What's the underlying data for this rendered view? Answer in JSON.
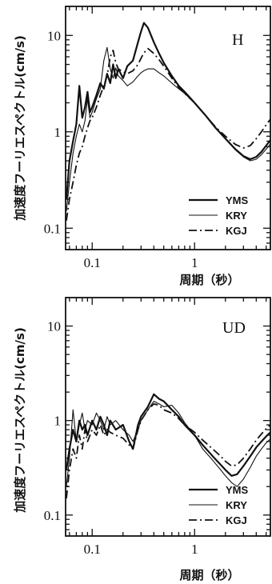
{
  "chart_data": [
    {
      "type": "line",
      "panel_label": "H",
      "xlabel": "周期（秒）",
      "ylabel": "加速度フーリエスペクトル(cm/s)",
      "xscale": "log",
      "yscale": "log",
      "xlim": [
        0.055,
        5.5
      ],
      "ylim": [
        0.06,
        20
      ],
      "xticks": [
        {
          "v": 0.1,
          "label": "0.1"
        },
        {
          "v": 1,
          "label": "1"
        }
      ],
      "yticks": [
        {
          "v": 0.1,
          "label": "0.1"
        },
        {
          "v": 1,
          "label": "1"
        },
        {
          "v": 10,
          "label": "10"
        }
      ],
      "legend_position": "bottom-right",
      "series": [
        {
          "name": "YMS",
          "style": "solid-thick",
          "x": [
            0.056,
            0.06,
            0.065,
            0.07,
            0.075,
            0.08,
            0.085,
            0.09,
            0.095,
            0.1,
            0.11,
            0.12,
            0.13,
            0.14,
            0.15,
            0.16,
            0.17,
            0.18,
            0.2,
            0.22,
            0.25,
            0.28,
            0.3,
            0.32,
            0.35,
            0.4,
            0.45,
            0.5,
            0.6,
            0.7,
            0.8,
            1.0,
            1.3,
            1.6,
            2.0,
            2.5,
            3.0,
            3.5,
            4.0,
            4.5,
            5.0,
            5.5
          ],
          "y": [
            0.2,
            0.5,
            0.8,
            1.2,
            3.0,
            1.4,
            1.8,
            2.6,
            1.6,
            1.8,
            2.4,
            3.2,
            2.8,
            4.0,
            3.2,
            5.0,
            3.6,
            4.5,
            3.6,
            4.8,
            5.5,
            8.5,
            11.0,
            13.5,
            12.0,
            8.5,
            6.5,
            5.2,
            3.8,
            3.0,
            2.6,
            2.0,
            1.45,
            1.1,
            0.85,
            0.66,
            0.56,
            0.52,
            0.55,
            0.62,
            0.72,
            0.82
          ]
        },
        {
          "name": "KRY",
          "style": "solid-thin",
          "x": [
            0.056,
            0.06,
            0.065,
            0.07,
            0.075,
            0.08,
            0.085,
            0.09,
            0.095,
            0.1,
            0.11,
            0.12,
            0.13,
            0.14,
            0.15,
            0.16,
            0.17,
            0.18,
            0.2,
            0.22,
            0.25,
            0.28,
            0.3,
            0.32,
            0.35,
            0.4,
            0.45,
            0.5,
            0.6,
            0.7,
            0.8,
            1.0,
            1.3,
            1.6,
            2.0,
            2.5,
            3.0,
            3.5,
            4.0,
            4.5,
            5.0,
            5.5
          ],
          "y": [
            0.15,
            0.3,
            0.6,
            0.9,
            1.2,
            1.0,
            1.3,
            2.2,
            1.4,
            1.6,
            2.2,
            2.8,
            5.5,
            7.5,
            4.5,
            3.6,
            4.6,
            3.8,
            3.4,
            3.0,
            3.3,
            3.8,
            4.1,
            4.3,
            4.5,
            4.5,
            4.1,
            3.8,
            3.2,
            2.8,
            2.5,
            2.0,
            1.45,
            1.1,
            0.84,
            0.65,
            0.55,
            0.5,
            0.52,
            0.58,
            0.66,
            0.75
          ]
        },
        {
          "name": "KGJ",
          "style": "dash-dot",
          "x": [
            0.056,
            0.06,
            0.065,
            0.07,
            0.075,
            0.08,
            0.085,
            0.09,
            0.095,
            0.1,
            0.11,
            0.12,
            0.13,
            0.14,
            0.15,
            0.16,
            0.17,
            0.18,
            0.2,
            0.22,
            0.25,
            0.28,
            0.3,
            0.32,
            0.35,
            0.4,
            0.45,
            0.5,
            0.6,
            0.7,
            0.8,
            1.0,
            1.3,
            1.6,
            2.0,
            2.5,
            3.0,
            3.5,
            4.0,
            4.5,
            5.0,
            5.5
          ],
          "y": [
            0.12,
            0.2,
            0.3,
            0.45,
            0.6,
            0.7,
            0.9,
            1.1,
            1.3,
            1.4,
            1.8,
            2.4,
            3.0,
            3.8,
            6.0,
            7.0,
            5.2,
            4.5,
            4.2,
            4.0,
            4.3,
            5.0,
            5.8,
            6.6,
            7.3,
            6.5,
            5.6,
            4.8,
            3.6,
            2.9,
            2.5,
            2.0,
            1.45,
            1.12,
            0.9,
            0.74,
            0.68,
            0.72,
            0.85,
            1.0,
            1.18,
            1.35
          ]
        }
      ]
    },
    {
      "type": "line",
      "panel_label": "UD",
      "xlabel": "周期（秒）",
      "ylabel": "加速度フーリエスペクトル(cm/s)",
      "xscale": "log",
      "yscale": "log",
      "xlim": [
        0.055,
        5.5
      ],
      "ylim": [
        0.06,
        20
      ],
      "xticks": [
        {
          "v": 0.1,
          "label": "0.1"
        },
        {
          "v": 1,
          "label": "1"
        }
      ],
      "yticks": [
        {
          "v": 0.1,
          "label": "0.1"
        },
        {
          "v": 1,
          "label": "1"
        },
        {
          "v": 10,
          "label": "10"
        }
      ],
      "legend_position": "bottom-right",
      "series": [
        {
          "name": "YMS",
          "style": "solid-thick",
          "x": [
            0.056,
            0.06,
            0.065,
            0.07,
            0.075,
            0.08,
            0.085,
            0.09,
            0.1,
            0.11,
            0.12,
            0.13,
            0.14,
            0.15,
            0.17,
            0.2,
            0.23,
            0.25,
            0.28,
            0.3,
            0.35,
            0.4,
            0.45,
            0.5,
            0.6,
            0.7,
            0.8,
            1.0,
            1.2,
            1.5,
            1.8,
            2.0,
            2.3,
            2.6,
            3.0,
            3.5,
            4.0,
            4.5,
            5.0,
            5.5
          ],
          "y": [
            0.3,
            0.5,
            0.8,
            0.6,
            1.0,
            0.8,
            0.9,
            0.7,
            1.0,
            0.8,
            1.1,
            0.9,
            0.7,
            1.0,
            0.8,
            0.9,
            0.6,
            0.5,
            0.9,
            1.1,
            1.4,
            1.9,
            1.7,
            1.6,
            1.3,
            1.1,
            0.9,
            0.7,
            0.55,
            0.42,
            0.34,
            0.3,
            0.26,
            0.27,
            0.33,
            0.42,
            0.52,
            0.6,
            0.68,
            0.75
          ]
        },
        {
          "name": "KRY",
          "style": "solid-thin",
          "x": [
            0.056,
            0.06,
            0.065,
            0.07,
            0.075,
            0.08,
            0.085,
            0.09,
            0.1,
            0.11,
            0.12,
            0.13,
            0.14,
            0.15,
            0.17,
            0.2,
            0.23,
            0.25,
            0.28,
            0.3,
            0.35,
            0.4,
            0.45,
            0.5,
            0.6,
            0.7,
            0.8,
            1.0,
            1.2,
            1.5,
            1.8,
            2.0,
            2.3,
            2.6,
            3.0,
            3.5,
            4.0,
            4.5,
            5.0,
            5.5
          ],
          "y": [
            0.2,
            0.4,
            1.3,
            0.6,
            0.9,
            1.2,
            0.8,
            1.0,
            0.9,
            1.2,
            1.0,
            0.8,
            1.1,
            0.9,
            1.0,
            0.8,
            0.7,
            0.6,
            0.8,
            1.0,
            1.3,
            1.6,
            1.5,
            1.4,
            1.45,
            1.2,
            0.95,
            0.7,
            0.5,
            0.38,
            0.3,
            0.26,
            0.22,
            0.2,
            0.24,
            0.32,
            0.42,
            0.5,
            0.58,
            0.64
          ]
        },
        {
          "name": "KGJ",
          "style": "dash-dot",
          "x": [
            0.056,
            0.06,
            0.065,
            0.07,
            0.075,
            0.08,
            0.085,
            0.09,
            0.1,
            0.11,
            0.12,
            0.13,
            0.14,
            0.15,
            0.17,
            0.2,
            0.23,
            0.25,
            0.28,
            0.3,
            0.35,
            0.4,
            0.45,
            0.5,
            0.6,
            0.7,
            0.8,
            1.0,
            1.2,
            1.5,
            1.8,
            2.0,
            2.3,
            2.6,
            3.0,
            3.5,
            4.0,
            4.5,
            5.0,
            5.5
          ],
          "y": [
            0.15,
            0.3,
            0.5,
            0.4,
            0.7,
            0.5,
            0.8,
            0.6,
            0.8,
            0.7,
            0.9,
            0.7,
            0.8,
            0.75,
            0.7,
            0.65,
            0.55,
            0.5,
            0.8,
            1.0,
            1.3,
            1.5,
            1.45,
            1.3,
            1.2,
            1.05,
            0.9,
            0.75,
            0.62,
            0.5,
            0.42,
            0.37,
            0.33,
            0.34,
            0.4,
            0.5,
            0.62,
            0.72,
            0.82,
            0.9
          ]
        }
      ]
    }
  ]
}
